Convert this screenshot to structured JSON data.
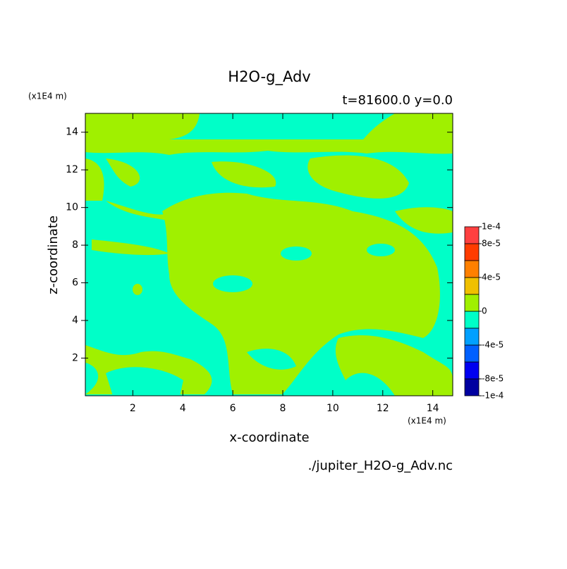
{
  "chart_data": {
    "type": "contour",
    "title": "H2O-g_Adv",
    "subtitle": "t=81600.0 y=0.0",
    "x_label": "x-coordinate",
    "y_label": "z-coordinate",
    "x_unit": "(x1E4 m)",
    "y_unit": "(x1E4 m)",
    "source": "./jupiter_H2O-g_Adv.nc",
    "xlim": [
      0.1,
      14.8
    ],
    "ylim": [
      0,
      15
    ],
    "xticks": [
      2,
      4,
      6,
      8,
      10,
      12,
      14
    ],
    "yticks": [
      2,
      4,
      6,
      8,
      10,
      12,
      14
    ],
    "levels": [
      -0.0001,
      -8e-05,
      -6e-05,
      -4e-05,
      -2e-05,
      0,
      2e-05,
      4e-05,
      6e-05,
      8e-05,
      0.0001
    ],
    "colors": [
      "#0000a0",
      "#0000f0",
      "#0060ff",
      "#00a0ff",
      "#00ffc8",
      "#a0f000",
      "#f0c000",
      "#ff8000",
      "#ff3c00",
      "#ff4040"
    ],
    "cticks": [
      {
        "value": 0.0001,
        "label": "1e-4"
      },
      {
        "value": 8e-05,
        "label": "8e-5"
      },
      {
        "value": 4e-05,
        "label": "4e-5"
      },
      0,
      {
        "value": -4e-05,
        "label": "-4e-5"
      },
      {
        "value": -8e-05,
        "label": "-8e-5"
      },
      {
        "value": -0.0001,
        "label": "-1e-4"
      }
    ]
  }
}
